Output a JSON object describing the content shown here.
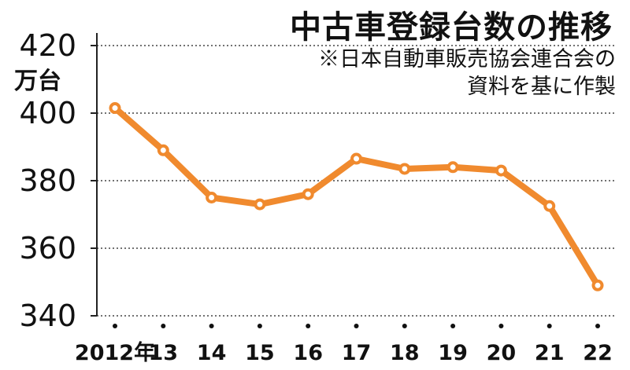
{
  "title": "中古車登録台数の推移",
  "note": [
    "※日本自動車販売協会連合会の",
    "資料を基に作製"
  ],
  "unit": "万台",
  "colors": {
    "line": "#f08a2e",
    "point_fill": "#ffffff",
    "axis": "#222222",
    "grid": "#444444"
  },
  "chart_data": {
    "type": "line",
    "title": "中古車登録台数の推移",
    "ylabel": "万台",
    "xlabel": "",
    "categories": [
      "2012年",
      "13",
      "14",
      "15",
      "16",
      "17",
      "18",
      "19",
      "20",
      "21",
      "22"
    ],
    "series": [
      {
        "values": [
          401.5,
          389,
          375,
          373,
          376,
          386.5,
          383.5,
          384,
          383,
          372.5,
          349
        ]
      }
    ],
    "ylim": [
      340,
      420
    ],
    "yticks": [
      340,
      360,
      380,
      400,
      420
    ],
    "grid": "horizontal-dotted",
    "legend": "none"
  }
}
